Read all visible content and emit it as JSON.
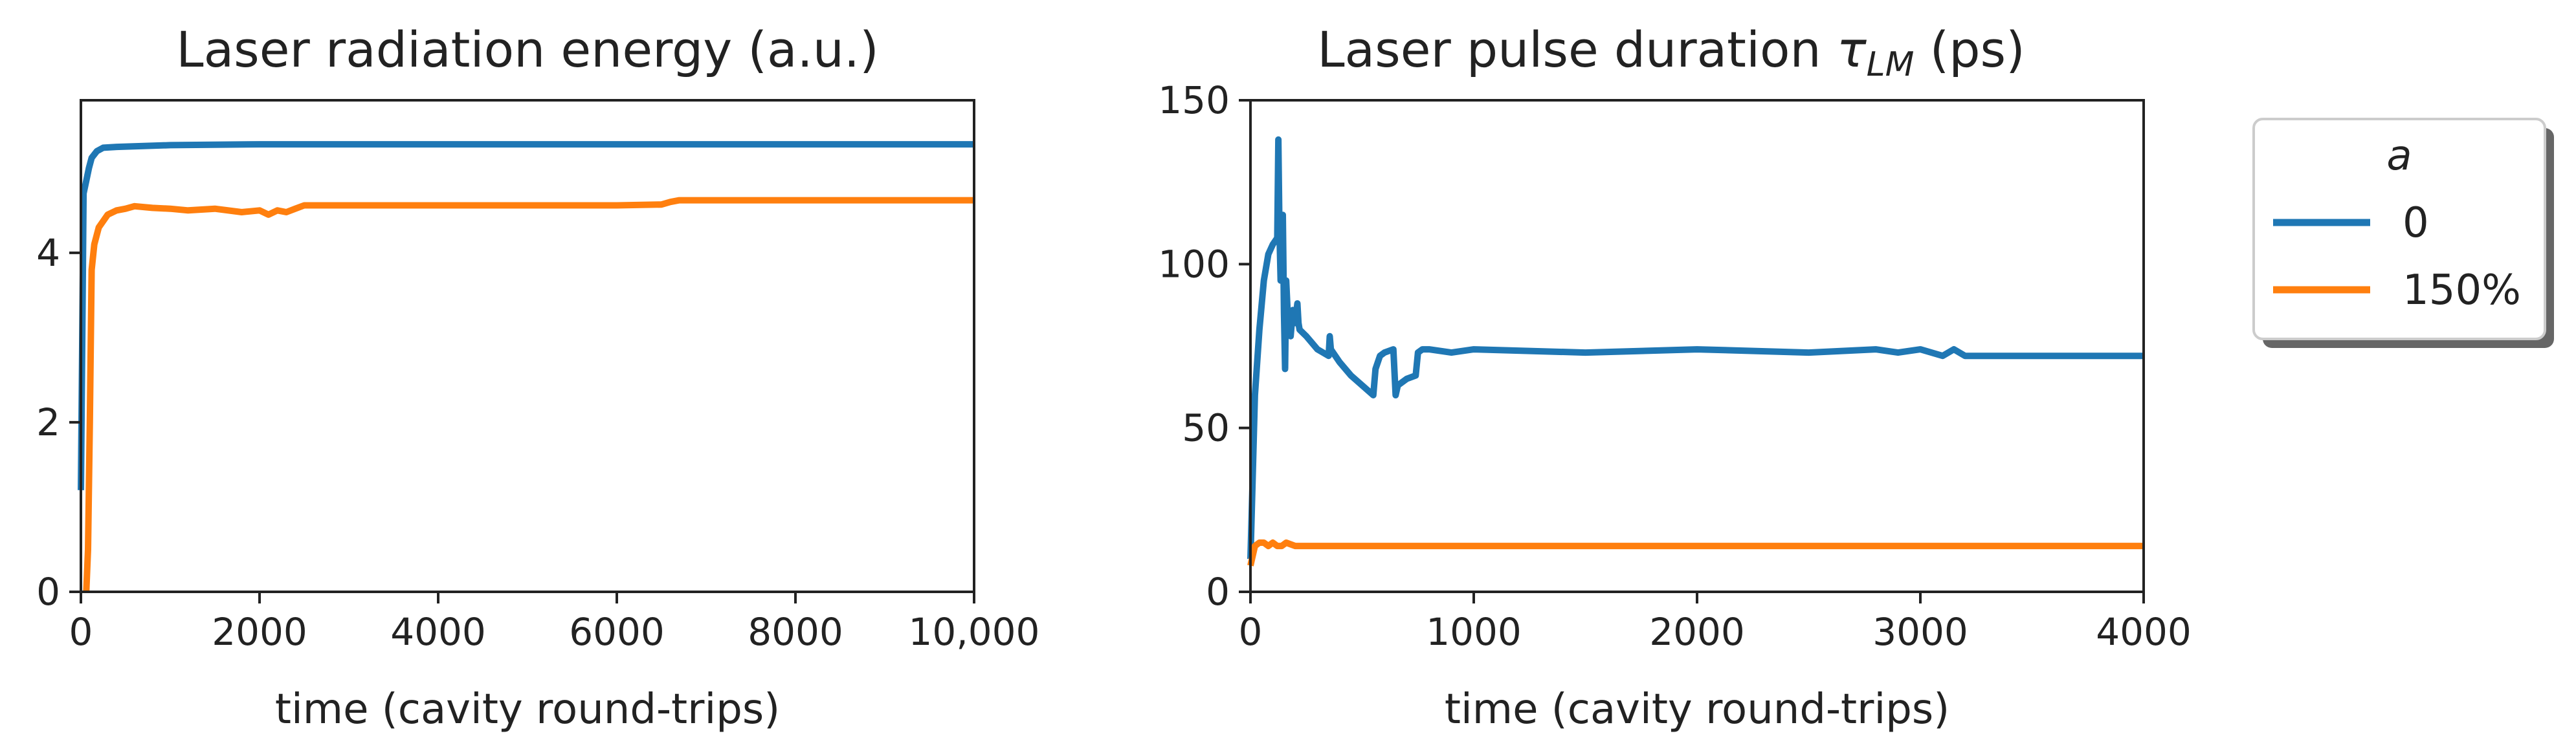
{
  "colors": {
    "blue": "#1f77b4",
    "orange": "#ff7f0e",
    "axis": "#222222"
  },
  "legend": {
    "title": "a",
    "entries": [
      {
        "label": "0",
        "color": "#1f77b4"
      },
      {
        "label": "150%",
        "color": "#ff7f0e"
      }
    ]
  },
  "chart_data": [
    {
      "type": "line",
      "title": "Laser radiation energy (a.u.)",
      "xlabel": "time (cavity round-trips)",
      "ylabel": "",
      "xlim": [
        0,
        10000
      ],
      "ylim": [
        0,
        5.8
      ],
      "xticks": [
        0,
        2000,
        4000,
        6000,
        8000,
        10000
      ],
      "xtick_labels": [
        "0",
        "2000",
        "4000",
        "6000",
        "8000",
        "10,000"
      ],
      "yticks": [
        0,
        2,
        4
      ],
      "ytick_labels": [
        "0",
        "2",
        "4"
      ],
      "grid": false,
      "series": [
        {
          "name": "0",
          "color": "#1f77b4",
          "x": [
            0,
            30,
            60,
            90,
            120,
            180,
            250,
            400,
            700,
            1000,
            2000,
            4000,
            6000,
            8000,
            10000
          ],
          "y": [
            1.2,
            4.7,
            4.85,
            5.0,
            5.12,
            5.2,
            5.24,
            5.25,
            5.26,
            5.27,
            5.28,
            5.28,
            5.28,
            5.28,
            5.28
          ]
        },
        {
          "name": "150%",
          "color": "#ff7f0e",
          "x": [
            60,
            80,
            100,
            120,
            150,
            200,
            300,
            400,
            500,
            600,
            800,
            1000,
            1200,
            1500,
            1800,
            2000,
            2100,
            2200,
            2300,
            2400,
            2500,
            3000,
            4000,
            5000,
            6000,
            6500,
            6600,
            6700,
            8000,
            10000
          ],
          "y": [
            0,
            0.5,
            2.0,
            3.8,
            4.1,
            4.3,
            4.45,
            4.5,
            4.52,
            4.55,
            4.53,
            4.52,
            4.5,
            4.52,
            4.48,
            4.5,
            4.45,
            4.5,
            4.48,
            4.52,
            4.56,
            4.56,
            4.56,
            4.56,
            4.56,
            4.57,
            4.6,
            4.62,
            4.62,
            4.62
          ]
        }
      ]
    },
    {
      "type": "line",
      "title": "Laser pulse duration τLM (ps)",
      "title_main": "Laser pulse duration ",
      "title_tau": "τ",
      "title_sub": "LM",
      "title_end": " (ps)",
      "xlabel": "time (cavity round-trips)",
      "ylabel": "",
      "xlim": [
        0,
        4000
      ],
      "ylim": [
        0,
        150
      ],
      "xticks": [
        0,
        1000,
        2000,
        3000,
        4000
      ],
      "xtick_labels": [
        "0",
        "1000",
        "2000",
        "3000",
        "4000"
      ],
      "yticks": [
        0,
        50,
        100,
        150
      ],
      "ytick_labels": [
        "0",
        "50",
        "100",
        "150"
      ],
      "grid": false,
      "series": [
        {
          "name": "0",
          "color": "#1f77b4",
          "x": [
            0,
            20,
            40,
            60,
            80,
            100,
            120,
            125,
            130,
            135,
            140,
            145,
            150,
            155,
            160,
            170,
            180,
            190,
            200,
            210,
            215,
            220,
            250,
            300,
            350,
            355,
            360,
            400,
            450,
            500,
            550,
            560,
            580,
            600,
            640,
            650,
            660,
            700,
            740,
            750,
            770,
            800,
            900,
            1000,
            1500,
            2000,
            2500,
            2800,
            2900,
            3000,
            3100,
            3150,
            3200,
            3400,
            3600,
            3800,
            4000
          ],
          "y": [
            10,
            60,
            80,
            95,
            103,
            106,
            108,
            138,
            110,
            95,
            105,
            115,
            85,
            68,
            95,
            80,
            78,
            86,
            82,
            88,
            82,
            80,
            78,
            74,
            72,
            78,
            74,
            70,
            66,
            63,
            60,
            68,
            72,
            73,
            74,
            60,
            63,
            65,
            66,
            73,
            74,
            74,
            73,
            74,
            73,
            74,
            73,
            74,
            73,
            74,
            72,
            74,
            72,
            72,
            72,
            72,
            72
          ]
        },
        {
          "name": "150%",
          "color": "#ff7f0e",
          "x": [
            0,
            20,
            40,
            60,
            80,
            100,
            120,
            140,
            160,
            200,
            400,
            1000,
            2000,
            3000,
            4000
          ],
          "y": [
            8,
            14,
            15,
            15,
            14,
            15,
            14,
            14,
            15,
            14,
            14,
            14,
            14,
            14,
            14
          ]
        }
      ]
    }
  ]
}
